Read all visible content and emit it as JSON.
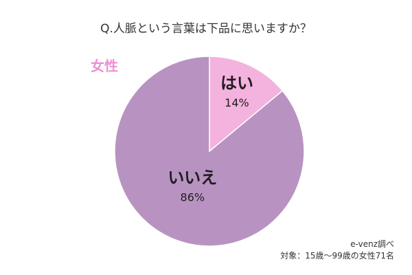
{
  "title": "Q.人脈という言葉は下品に思いますか？",
  "group_label": "女性",
  "source": {
    "line1": "e-venz調べ",
    "line2": "対象：15歳〜99歳の女性71名"
  },
  "colors": {
    "slice_yes": "#f4b2de",
    "slice_no": "#b893c2",
    "group_label": "#ee8fd4"
  },
  "chart_data": {
    "type": "pie",
    "title": "Q.人脈という言葉は下品に思いますか？",
    "slices": [
      {
        "label": "はい",
        "value": 14,
        "value_label": "14%"
      },
      {
        "label": "いいえ",
        "value": 86,
        "value_label": "86%"
      }
    ]
  }
}
